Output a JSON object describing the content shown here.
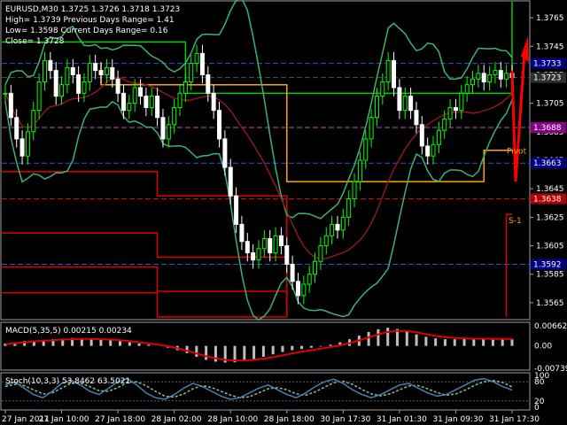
{
  "header": {
    "symbol_line": "EURUSD,M30  1.3725 1.3726 1.3718 1.3723",
    "high_line": "High= 1.3739   Previous Days Range= 1.41",
    "low_line": "Low= 1.3598   Current Days Range= 0.16",
    "close_line": "Close= 1.3728"
  },
  "colors": {
    "background": "#000000",
    "bull_candle": "#00ff00",
    "bear_candle": "#ffffff",
    "bollinger": "#3cb371",
    "moving_average": "#8b1a1a",
    "day_high_low": "#00cc00",
    "current_range": "#ffa500",
    "pivot_levels": "#e00000",
    "macd_hist": "#bebebe",
    "macd_signal": "#e00000",
    "stoch_main": "#4682b4",
    "stoch_signal": "#8fbc8f",
    "arrow": "#ff0000"
  },
  "chart_data": [
    {
      "type": "line",
      "panel": "price",
      "ylim": [
        1.3555,
        1.3775
      ],
      "y_ticks": [
        "1.3765",
        "1.3745",
        "1.3725",
        "1.3705",
        "1.3685",
        "1.3665",
        "1.3645",
        "1.3625",
        "1.3605",
        "1.3585",
        "1.3565"
      ],
      "x_ticks": [
        "27 Jan 2011",
        "27 Jan 10:00",
        "27 Jan 18:00",
        "28 Jan 02:00",
        "28 Jan 10:00",
        "28 Jan 18:00",
        "30 Jan 17:30",
        "31 Jan 01:30",
        "31 Jan 09:30",
        "31 Jan 17:30"
      ],
      "close_series": [
        1.3712,
        1.3695,
        1.368,
        1.3668,
        1.3685,
        1.37,
        1.372,
        1.3735,
        1.3728,
        1.371,
        1.3718,
        1.373,
        1.3725,
        1.3712,
        1.372,
        1.3733,
        1.3728,
        1.3725,
        1.373,
        1.3722,
        1.3712,
        1.37,
        1.3705,
        1.3716,
        1.371,
        1.3702,
        1.371,
        1.3695,
        1.368,
        1.369,
        1.3702,
        1.3712,
        1.372,
        1.3733,
        1.374,
        1.3725,
        1.3712,
        1.37,
        1.368,
        1.366,
        1.364,
        1.362,
        1.3608,
        1.36,
        1.3595,
        1.3603,
        1.361,
        1.36,
        1.3612,
        1.3605,
        1.3592,
        1.358,
        1.357,
        1.3578,
        1.3585,
        1.3594,
        1.3605,
        1.3612,
        1.362,
        1.3616,
        1.3625,
        1.3638,
        1.365,
        1.3665,
        1.368,
        1.3695,
        1.371,
        1.372,
        1.3735,
        1.3716,
        1.37,
        1.371,
        1.37,
        1.369,
        1.3675,
        1.3668,
        1.3676,
        1.3686,
        1.3694,
        1.3702,
        1.37,
        1.3712,
        1.3718,
        1.3722,
        1.3726,
        1.372,
        1.3725,
        1.3728,
        1.3722,
        1.3726,
        1.3723
      ],
      "labels": [
        {
          "text": "1.3733",
          "value": 1.3733,
          "color": "#000080"
        },
        {
          "text": "1.3723",
          "value": 1.3723,
          "color": "#2f2f2f"
        },
        {
          "text": "1.3688",
          "value": 1.3688,
          "color": "#8b008b"
        },
        {
          "text": "1.3663",
          "value": 1.3663,
          "color": "#000080"
        },
        {
          "text": "1.3638",
          "value": 1.3638,
          "color": "#b00000"
        },
        {
          "text": "1.3592",
          "value": 1.3592,
          "color": "#000080"
        }
      ],
      "annotations": {
        "pivot": "Pivot",
        "s1": "S-1"
      }
    },
    {
      "type": "bar",
      "panel": "macd",
      "title": "MACD(5,35,5) 0.00215 0.00234",
      "y_ticks": [
        "0.00662",
        "0.00",
        "-0.00739"
      ],
      "ylim": [
        -0.00739,
        0.00662
      ],
      "hist": [
        0.0008,
        0.0012,
        0.0016,
        0.0018,
        0.002,
        0.0022,
        0.0024,
        0.0026,
        0.0025,
        0.0024,
        0.0022,
        0.002,
        0.0016,
        0.0012,
        0.0008,
        0.0004,
        0.0,
        -0.0006,
        -0.0014,
        -0.0024,
        -0.0036,
        -0.0046,
        -0.0052,
        -0.0055,
        -0.0054,
        -0.005,
        -0.0044,
        -0.0036,
        -0.0028,
        -0.002,
        -0.0014,
        -0.001,
        -0.0006,
        -0.0002,
        0.0004,
        0.0012,
        0.0022,
        0.0034,
        0.0046,
        0.0055,
        0.006,
        0.0056,
        0.0048,
        0.0038,
        0.003,
        0.0025,
        0.0022,
        0.0022,
        0.0023,
        0.0023,
        0.0022,
        0.0021,
        0.0021,
        0.00215
      ],
      "signal": [
        0.0006,
        0.0009,
        0.0012,
        0.0015,
        0.0017,
        0.0019,
        0.0021,
        0.0022,
        0.0023,
        0.0023,
        0.0022,
        0.0021,
        0.0019,
        0.0016,
        0.0012,
        0.0008,
        0.0004,
        -0.0001,
        -0.0008,
        -0.0016,
        -0.0025,
        -0.0034,
        -0.0041,
        -0.0046,
        -0.0048,
        -0.0048,
        -0.0046,
        -0.0042,
        -0.0037,
        -0.0031,
        -0.0025,
        -0.0019,
        -0.0014,
        -0.0009,
        -0.0004,
        0.0002,
        0.0009,
        0.0018,
        0.0028,
        0.0038,
        0.0046,
        0.005,
        0.0049,
        0.0045,
        0.0039,
        0.0033,
        0.0029,
        0.0026,
        0.0025,
        0.0024,
        0.0024,
        0.0023,
        0.0023,
        0.00234
      ]
    },
    {
      "type": "line",
      "panel": "stoch",
      "title": "Stoch(10,3,3) 53.8462 63.5021",
      "y_ticks": [
        "100",
        "80",
        "20",
        "0"
      ],
      "ylim": [
        0,
        100
      ],
      "main": [
        70,
        80,
        60,
        40,
        30,
        50,
        75,
        85,
        70,
        50,
        40,
        60,
        80,
        90,
        70,
        45,
        30,
        25,
        40,
        60,
        75,
        65,
        50,
        35,
        25,
        30,
        45,
        60,
        70,
        55,
        40,
        30,
        45,
        65,
        80,
        88,
        75,
        55,
        40,
        30,
        40,
        55,
        70,
        75,
        60,
        45,
        35,
        40,
        55,
        70,
        85,
        90,
        80,
        65,
        54
      ],
      "signal": [
        65,
        72,
        68,
        55,
        42,
        45,
        60,
        75,
        76,
        65,
        52,
        50,
        62,
        78,
        80,
        68,
        50,
        35,
        32,
        42,
        58,
        68,
        62,
        50,
        38,
        30,
        33,
        45,
        58,
        62,
        55,
        42,
        38,
        48,
        63,
        77,
        82,
        72,
        56,
        42,
        36,
        42,
        55,
        67,
        68,
        58,
        46,
        38,
        42,
        54,
        69,
        80,
        84,
        78,
        64
      ]
    }
  ]
}
